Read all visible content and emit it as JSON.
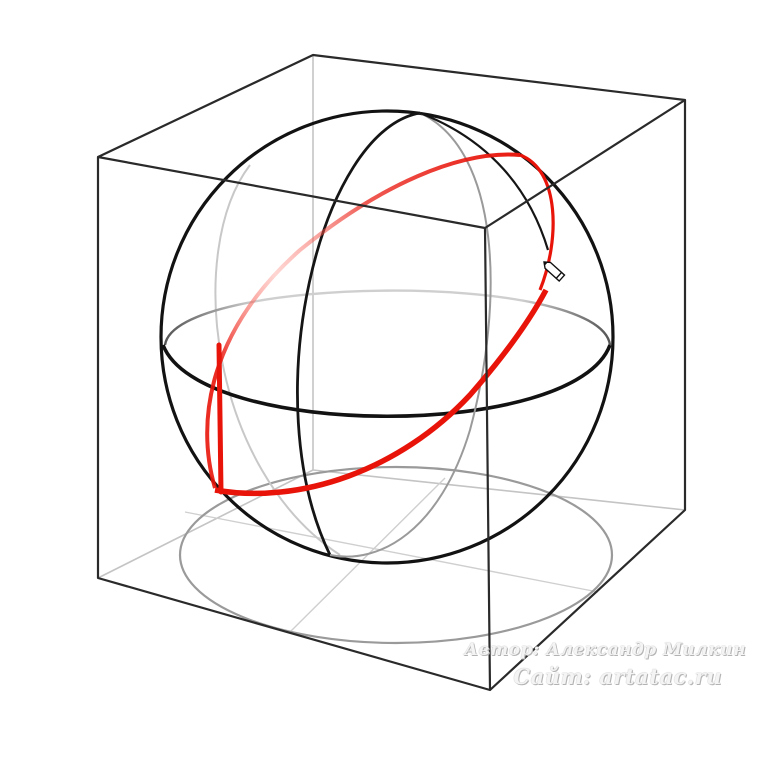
{
  "watermark": {
    "author": "Автор: Александр Милкин",
    "site": "Сайт: artatac.ru"
  },
  "colors": {
    "background": "#ffffff",
    "ink": "#111111",
    "faint_ink": "#bdbdbd",
    "accent": "#e8140a"
  },
  "icons": [
    "pencil-cursor-icon"
  ]
}
